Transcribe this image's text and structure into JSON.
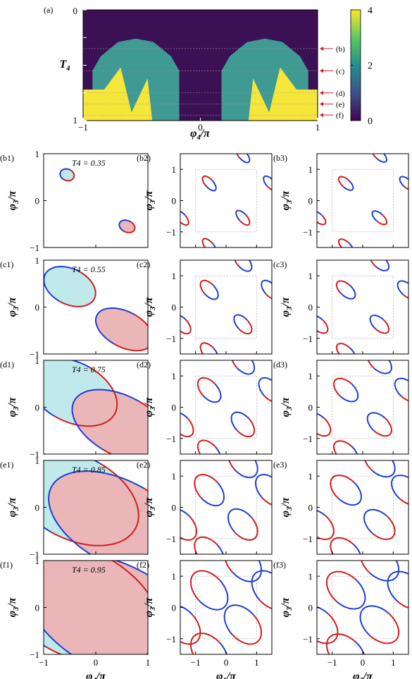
{
  "colors": {
    "red": "#d41c1c",
    "blue": "#1f3fd4",
    "fill_red": "#eab6b8",
    "fill_blue": "#bfe9ea",
    "map_dark": "#3b1054",
    "map_teal": "#3f9a94",
    "map_yellow": "#f6e63a"
  },
  "chart_data": {
    "panel_a": {
      "type": "heatmap",
      "label": "(a)",
      "xlabel": "φ4/π",
      "ylabel": "T4",
      "xlim": [
        -1,
        1
      ],
      "ylim": [
        0,
        1
      ],
      "x_ticks": [
        "−1",
        "0",
        "1"
      ],
      "y_ticks": [
        "0",
        "1"
      ],
      "colorbar": {
        "range": [
          0,
          4
        ],
        "ticks": [
          "4",
          "2",
          "0"
        ]
      },
      "markers": [
        {
          "label": "(b)",
          "T4": 0.35
        },
        {
          "label": "(c)",
          "T4": 0.55
        },
        {
          "label": "(d)",
          "T4": 0.75
        },
        {
          "label": "(e)",
          "T4": 0.85
        },
        {
          "label": "(f)",
          "T4": 0.95
        }
      ]
    },
    "rows": [
      {
        "key": "b",
        "T4": "T4 = 0.35",
        "labels": [
          "(b1)",
          "(b2)",
          "(b3)"
        ]
      },
      {
        "key": "c",
        "T4": "T4 = 0.55",
        "labels": [
          "(c1)",
          "(c2)",
          "(c3)"
        ]
      },
      {
        "key": "d",
        "T4": "T4 = 0.75",
        "labels": [
          "(d1)",
          "(d2)",
          "(d3)"
        ]
      },
      {
        "key": "e",
        "T4": "T4 = 0.85",
        "labels": [
          "(e1)",
          "(e2)",
          "(e3)"
        ]
      },
      {
        "key": "f",
        "T4": "T4 = 0.95",
        "labels": [
          "(f1)",
          "(f2)",
          "(f3)"
        ]
      }
    ],
    "columns": [
      {
        "xlabel": "φ4/π",
        "ylabel": "φ3/π",
        "xlim": [
          -1,
          1
        ],
        "ylim": [
          -1,
          1
        ],
        "x_ticks": [
          "−1",
          "0",
          "1"
        ],
        "y_ticks": [
          "1",
          "0",
          "−1"
        ]
      },
      {
        "xlabel": "φ1/π",
        "ylabel": "φ3/π",
        "xlim": [
          -1.5,
          1.5
        ],
        "ylim": [
          -1.5,
          1.5
        ],
        "x_ticks": [
          "−1",
          "0",
          "1"
        ],
        "y_ticks": [
          "1",
          "0",
          "−1"
        ]
      },
      {
        "xlabel": "φ2/π",
        "ylabel": "φ3/π",
        "xlim": [
          -1.5,
          1.5
        ],
        "ylim": [
          -1.5,
          1.5
        ],
        "x_ticks": [
          "−1",
          "0",
          "1"
        ],
        "y_ticks": [
          "1",
          "0",
          "−1"
        ]
      }
    ]
  }
}
